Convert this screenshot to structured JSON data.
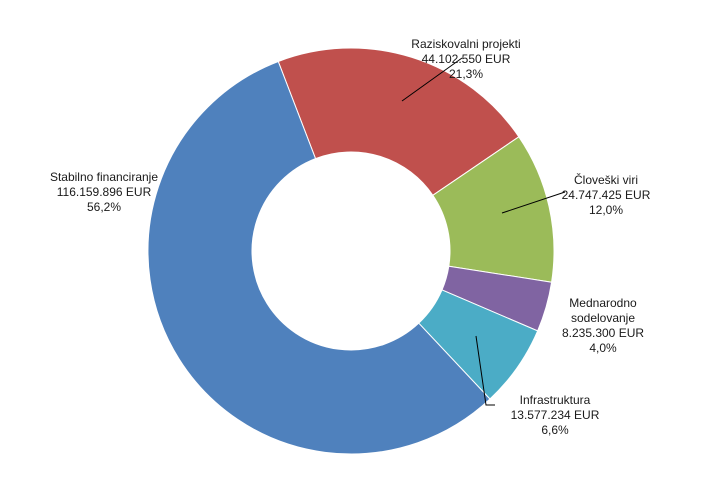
{
  "chart_data": {
    "type": "pie",
    "subtype": "donut",
    "title": "",
    "unit": "EUR",
    "slices": [
      {
        "label_lines": [
          "Raziskovalni projekti"
        ],
        "value": 44102550,
        "value_text": "44.102.550 EUR",
        "percent": 21.3,
        "percent_text": "21,3%",
        "color": "#C0504D"
      },
      {
        "label_lines": [
          "Človeški viri"
        ],
        "value": 24747425,
        "value_text": "24.747.425 EUR",
        "percent": 12.0,
        "percent_text": "12,0%",
        "color": "#9BBB59"
      },
      {
        "label_lines": [
          "Mednarodno",
          "sodelovanje"
        ],
        "value": 8235300,
        "value_text": "8.235.300 EUR",
        "percent": 4.0,
        "percent_text": "4,0%",
        "color": "#8064A2"
      },
      {
        "label_lines": [
          "Infrastruktura"
        ],
        "value": 13577234,
        "value_text": "13.577.234 EUR",
        "percent": 6.6,
        "percent_text": "6,6%",
        "color": "#4BACC6"
      },
      {
        "label_lines": [
          "Stabilno financiranje"
        ],
        "value": 116159896,
        "value_text": "116.159.896 EUR",
        "percent": 56.2,
        "percent_text": "56,2%",
        "color": "#4F81BD"
      }
    ]
  }
}
